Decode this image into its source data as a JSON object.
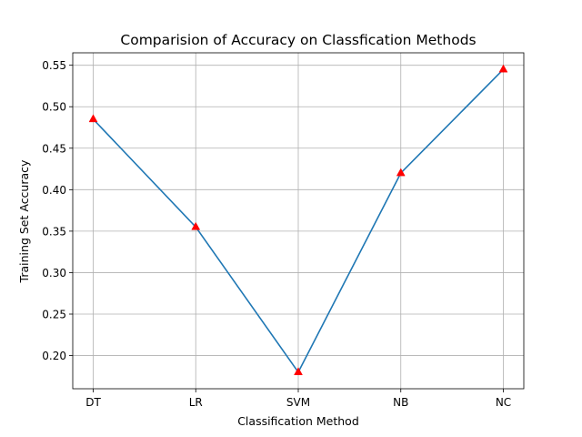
{
  "chart_data": {
    "type": "line",
    "title": "Comparision of Accuracy on Classfication Methods",
    "xlabel": "Classification Method",
    "ylabel": "Training Set Accuracy",
    "categories": [
      "DT",
      "LR",
      "SVM",
      "NB",
      "NC"
    ],
    "series": [
      {
        "values": [
          0.485,
          0.355,
          0.18,
          0.42,
          0.545
        ],
        "line_color": "#1f77b4",
        "marker": "triangle-up",
        "marker_color": "#ff0000"
      }
    ],
    "ylim": [
      0.16,
      0.565
    ],
    "yticks": [
      0.2,
      0.25,
      0.3,
      0.35,
      0.4,
      0.45,
      0.5,
      0.55
    ],
    "ytick_labels": [
      "0.20",
      "0.25",
      "0.30",
      "0.35",
      "0.40",
      "0.45",
      "0.50",
      "0.55"
    ],
    "grid": true,
    "grid_color": "#b0b0b0"
  }
}
